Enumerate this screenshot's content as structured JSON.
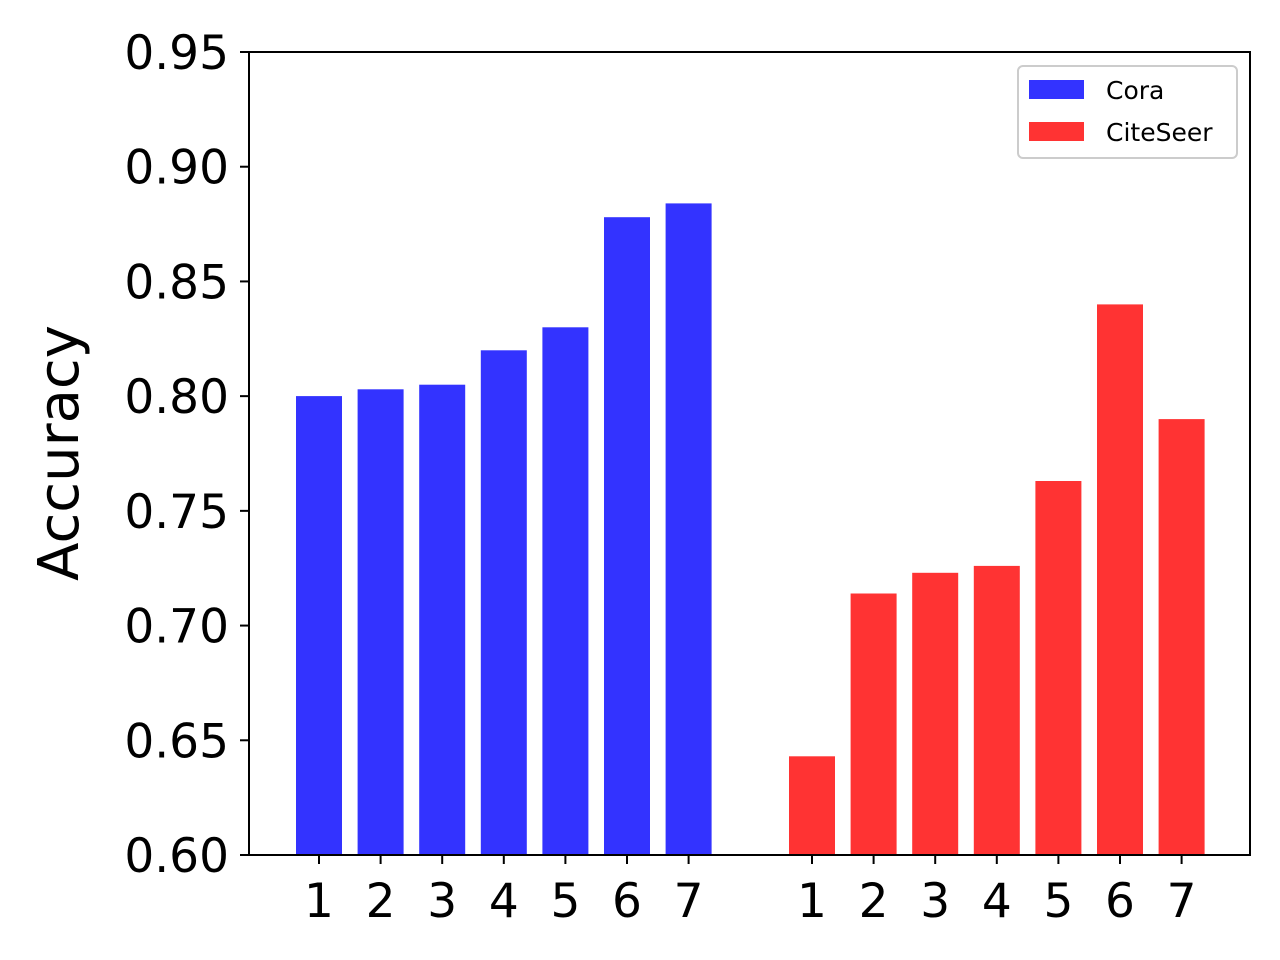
{
  "chart_data": {
    "type": "bar",
    "title": "",
    "xlabel": "",
    "ylabel": "Accuracy",
    "ylim": [
      0.6,
      0.95
    ],
    "yticks": [
      "0.60",
      "0.65",
      "0.70",
      "0.75",
      "0.80",
      "0.85",
      "0.90",
      "0.95"
    ],
    "grid": false,
    "legend_position": "top-right",
    "groups": [
      {
        "name": "Cora",
        "color": "#3333ff",
        "categories": [
          "1",
          "2",
          "3",
          "4",
          "5",
          "6",
          "7"
        ],
        "values": [
          0.8,
          0.803,
          0.805,
          0.82,
          0.83,
          0.878,
          0.884
        ]
      },
      {
        "name": "CiteSeer",
        "color": "#ff3333",
        "categories": [
          "1",
          "2",
          "3",
          "4",
          "5",
          "6",
          "7"
        ],
        "values": [
          0.643,
          0.714,
          0.723,
          0.726,
          0.763,
          0.84,
          0.79
        ]
      }
    ]
  }
}
